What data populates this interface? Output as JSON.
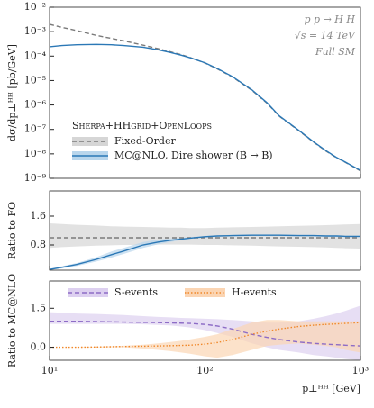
{
  "chart_data": [
    {
      "type": "line",
      "ylabel": "dσ/dp⊥ᴴᴴ [pb/GeV]",
      "log_x": true,
      "log_y": true,
      "legend_title": "Sherpa+HHgrid+OpenLoops",
      "annotations": [
        "p p → H H",
        "√s = 14 TeV",
        "Full SM"
      ],
      "x": [
        10,
        12,
        15,
        20,
        25,
        30,
        40,
        50,
        60,
        70,
        80,
        100,
        120,
        150,
        200,
        250,
        300,
        400,
        500,
        600,
        700,
        800,
        1000
      ],
      "series": [
        {
          "name": "Fixed-Order",
          "color": "#7a7a7a",
          "dash": true,
          "band_color": "#d6d6d6",
          "values": [
            0.002,
            0.0015,
            0.0011,
            0.0007,
            0.00053,
            0.00042,
            0.00028,
            0.0002,
            0.00015,
            0.000115,
            8.8e-05,
            5.2e-05,
            3e-05,
            1.4e-05,
            4e-06,
            1.2e-06,
            3.5e-07,
            9e-08,
            3e-08,
            1.3e-08,
            7e-09,
            4.5e-09,
            2e-09
          ]
        },
        {
          "name": "MC@NLO, Dire shower (B̃ → B)",
          "color": "#2b78b6",
          "dash": false,
          "band_color": "#b9d6ec",
          "values": [
            0.00024,
            0.00027,
            0.00029,
            0.0003,
            0.00029,
            0.00027,
            0.00023,
            0.00018,
            0.00014,
            0.00011,
            8.6e-05,
            5.3e-05,
            3.1e-05,
            1.45e-05,
            4.2e-06,
            1.25e-06,
            3.6e-07,
            9.3e-08,
            3.1e-08,
            1.35e-08,
            7.2e-09,
            4.6e-09,
            2.1e-09
          ]
        }
      ],
      "xlim": [
        10,
        1000
      ],
      "xticks": [
        10,
        100,
        1000
      ],
      "ylim": [
        1e-09,
        0.01
      ],
      "yticks": [
        {
          "value": 0.01,
          "label": "10⁻²"
        },
        {
          "value": 0.001,
          "label": "10⁻³"
        },
        {
          "value": 0.0001,
          "label": "10⁻⁴"
        },
        {
          "value": 1e-05,
          "label": "10⁻⁵"
        },
        {
          "value": 1e-06,
          "label": "10⁻⁶"
        },
        {
          "value": 1e-07,
          "label": "10⁻⁷"
        },
        {
          "value": 1e-08,
          "label": "10⁻⁸"
        },
        {
          "value": 1e-09,
          "label": "10⁻⁹"
        }
      ]
    },
    {
      "type": "line",
      "ylabel": "Ratio to FO",
      "log_x": true,
      "log_y": false,
      "x": [
        10,
        12,
        15,
        20,
        25,
        30,
        40,
        50,
        60,
        70,
        80,
        100,
        120,
        150,
        200,
        250,
        300,
        400,
        500,
        600,
        700,
        800,
        1000
      ],
      "series": [
        {
          "name": "Fixed-Order",
          "color": "#7a7a7a",
          "dash": true,
          "band_color": "#d6d6d6",
          "values": [
            1,
            1,
            1,
            1,
            1,
            1,
            1,
            1,
            1,
            1,
            1,
            1,
            1,
            1,
            1,
            1,
            1,
            1,
            1,
            1,
            1,
            1,
            1
          ],
          "lower": [
            0.72,
            0.74,
            0.76,
            0.78,
            0.79,
            0.8,
            0.8,
            0.81,
            0.81,
            0.81,
            0.81,
            0.8,
            0.8,
            0.79,
            0.78,
            0.77,
            0.76,
            0.75,
            0.74,
            0.73,
            0.72,
            0.71,
            0.7
          ],
          "upper": [
            1.4,
            1.38,
            1.36,
            1.34,
            1.32,
            1.31,
            1.3,
            1.29,
            1.28,
            1.28,
            1.27,
            1.27,
            1.28,
            1.29,
            1.3,
            1.31,
            1.32,
            1.33,
            1.34,
            1.35,
            1.36,
            1.37,
            1.38
          ]
        },
        {
          "name": "MC@NLO, Dire shower (B̃ → B)",
          "color": "#2b78b6",
          "dash": false,
          "band_color": "#b9d6ec",
          "values": [
            0.12,
            0.18,
            0.26,
            0.4,
            0.53,
            0.63,
            0.8,
            0.88,
            0.93,
            0.96,
            0.99,
            1.03,
            1.05,
            1.06,
            1.07,
            1.07,
            1.07,
            1.06,
            1.06,
            1.05,
            1.05,
            1.04,
            1.04
          ],
          "lower": [
            0.1,
            0.15,
            0.22,
            0.34,
            0.45,
            0.55,
            0.72,
            0.82,
            0.88,
            0.93,
            0.97,
            1.01,
            1.03,
            1.04,
            1.05,
            1.05,
            1.05,
            1.04,
            1.04,
            1.03,
            1.03,
            1.02,
            1.02
          ],
          "upper": [
            0.14,
            0.21,
            0.3,
            0.46,
            0.62,
            0.72,
            0.88,
            0.95,
            0.98,
            1.0,
            1.02,
            1.05,
            1.07,
            1.08,
            1.09,
            1.09,
            1.09,
            1.08,
            1.08,
            1.07,
            1.07,
            1.06,
            1.06
          ]
        }
      ],
      "xlim": [
        10,
        1000
      ],
      "xticks": [
        10,
        100,
        1000
      ],
      "ylim": [
        0.1,
        2.3
      ],
      "yticks": [
        0.8,
        1.6
      ]
    },
    {
      "type": "line",
      "ylabel": "Ratio to MC@NLO",
      "xlabel": "p⊥ᴴᴴ [GeV]",
      "log_x": true,
      "log_y": false,
      "x": [
        10,
        12,
        15,
        20,
        25,
        30,
        40,
        50,
        60,
        70,
        80,
        100,
        120,
        150,
        200,
        250,
        300,
        400,
        500,
        600,
        700,
        800,
        1000
      ],
      "series": [
        {
          "name": "S-events",
          "color": "#8d6cc6",
          "dash": true,
          "band_color": "#ddd0f0",
          "values": [
            1,
            1,
            1,
            0.99,
            0.98,
            0.97,
            0.96,
            0.95,
            0.94,
            0.93,
            0.92,
            0.88,
            0.82,
            0.7,
            0.5,
            0.38,
            0.3,
            0.2,
            0.15,
            0.12,
            0.1,
            0.08,
            0.05
          ],
          "lower": [
            0.9,
            0.9,
            0.9,
            0.9,
            0.9,
            0.9,
            0.88,
            0.86,
            0.84,
            0.8,
            0.76,
            0.66,
            0.55,
            0.4,
            0.15,
            0,
            -0.1,
            -0.2,
            -0.3,
            -0.35,
            -0.4,
            -0.45,
            -0.5
          ],
          "upper": [
            1.35,
            1.33,
            1.3,
            1.28,
            1.26,
            1.24,
            1.2,
            1.17,
            1.15,
            1.13,
            1.12,
            1.1,
            1.08,
            1.05,
            1.0,
            0.95,
            0.95,
            1.0,
            1.1,
            1.2,
            1.3,
            1.4,
            1.6
          ]
        },
        {
          "name": "H-events",
          "color": "#f0882a",
          "dash": false,
          "band_color": "#fbd5b3",
          "values": [
            0,
            0,
            0,
            0.01,
            0.02,
            0.03,
            0.04,
            0.05,
            0.06,
            0.07,
            0.08,
            0.12,
            0.18,
            0.3,
            0.5,
            0.62,
            0.7,
            0.8,
            0.85,
            0.88,
            0.9,
            0.92,
            0.95
          ],
          "lower": [
            0,
            0,
            0,
            0,
            0,
            0,
            -0.05,
            -0.1,
            -0.15,
            -0.2,
            -0.25,
            -0.35,
            -0.4,
            -0.3,
            -0.1,
            0.05,
            0.1,
            0.15,
            0.1,
            0.05,
            0,
            -0.1,
            -0.2
          ],
          "upper": [
            0,
            0,
            0.01,
            0.02,
            0.04,
            0.06,
            0.1,
            0.15,
            0.2,
            0.25,
            0.3,
            0.4,
            0.5,
            0.7,
            0.95,
            1.05,
            1.05,
            1.0,
            1.0,
            1.0,
            1.0,
            1.0,
            1.0
          ]
        }
      ],
      "xlim": [
        10,
        1000
      ],
      "xticks": [
        {
          "value": 10,
          "label": "10¹"
        },
        {
          "value": 100,
          "label": "10²"
        },
        {
          "value": 1000,
          "label": "10³"
        }
      ],
      "ylim": [
        -0.5,
        2.55
      ],
      "yticks": [
        {
          "value": 0,
          "label": "0.0"
        },
        1.5
      ]
    }
  ]
}
